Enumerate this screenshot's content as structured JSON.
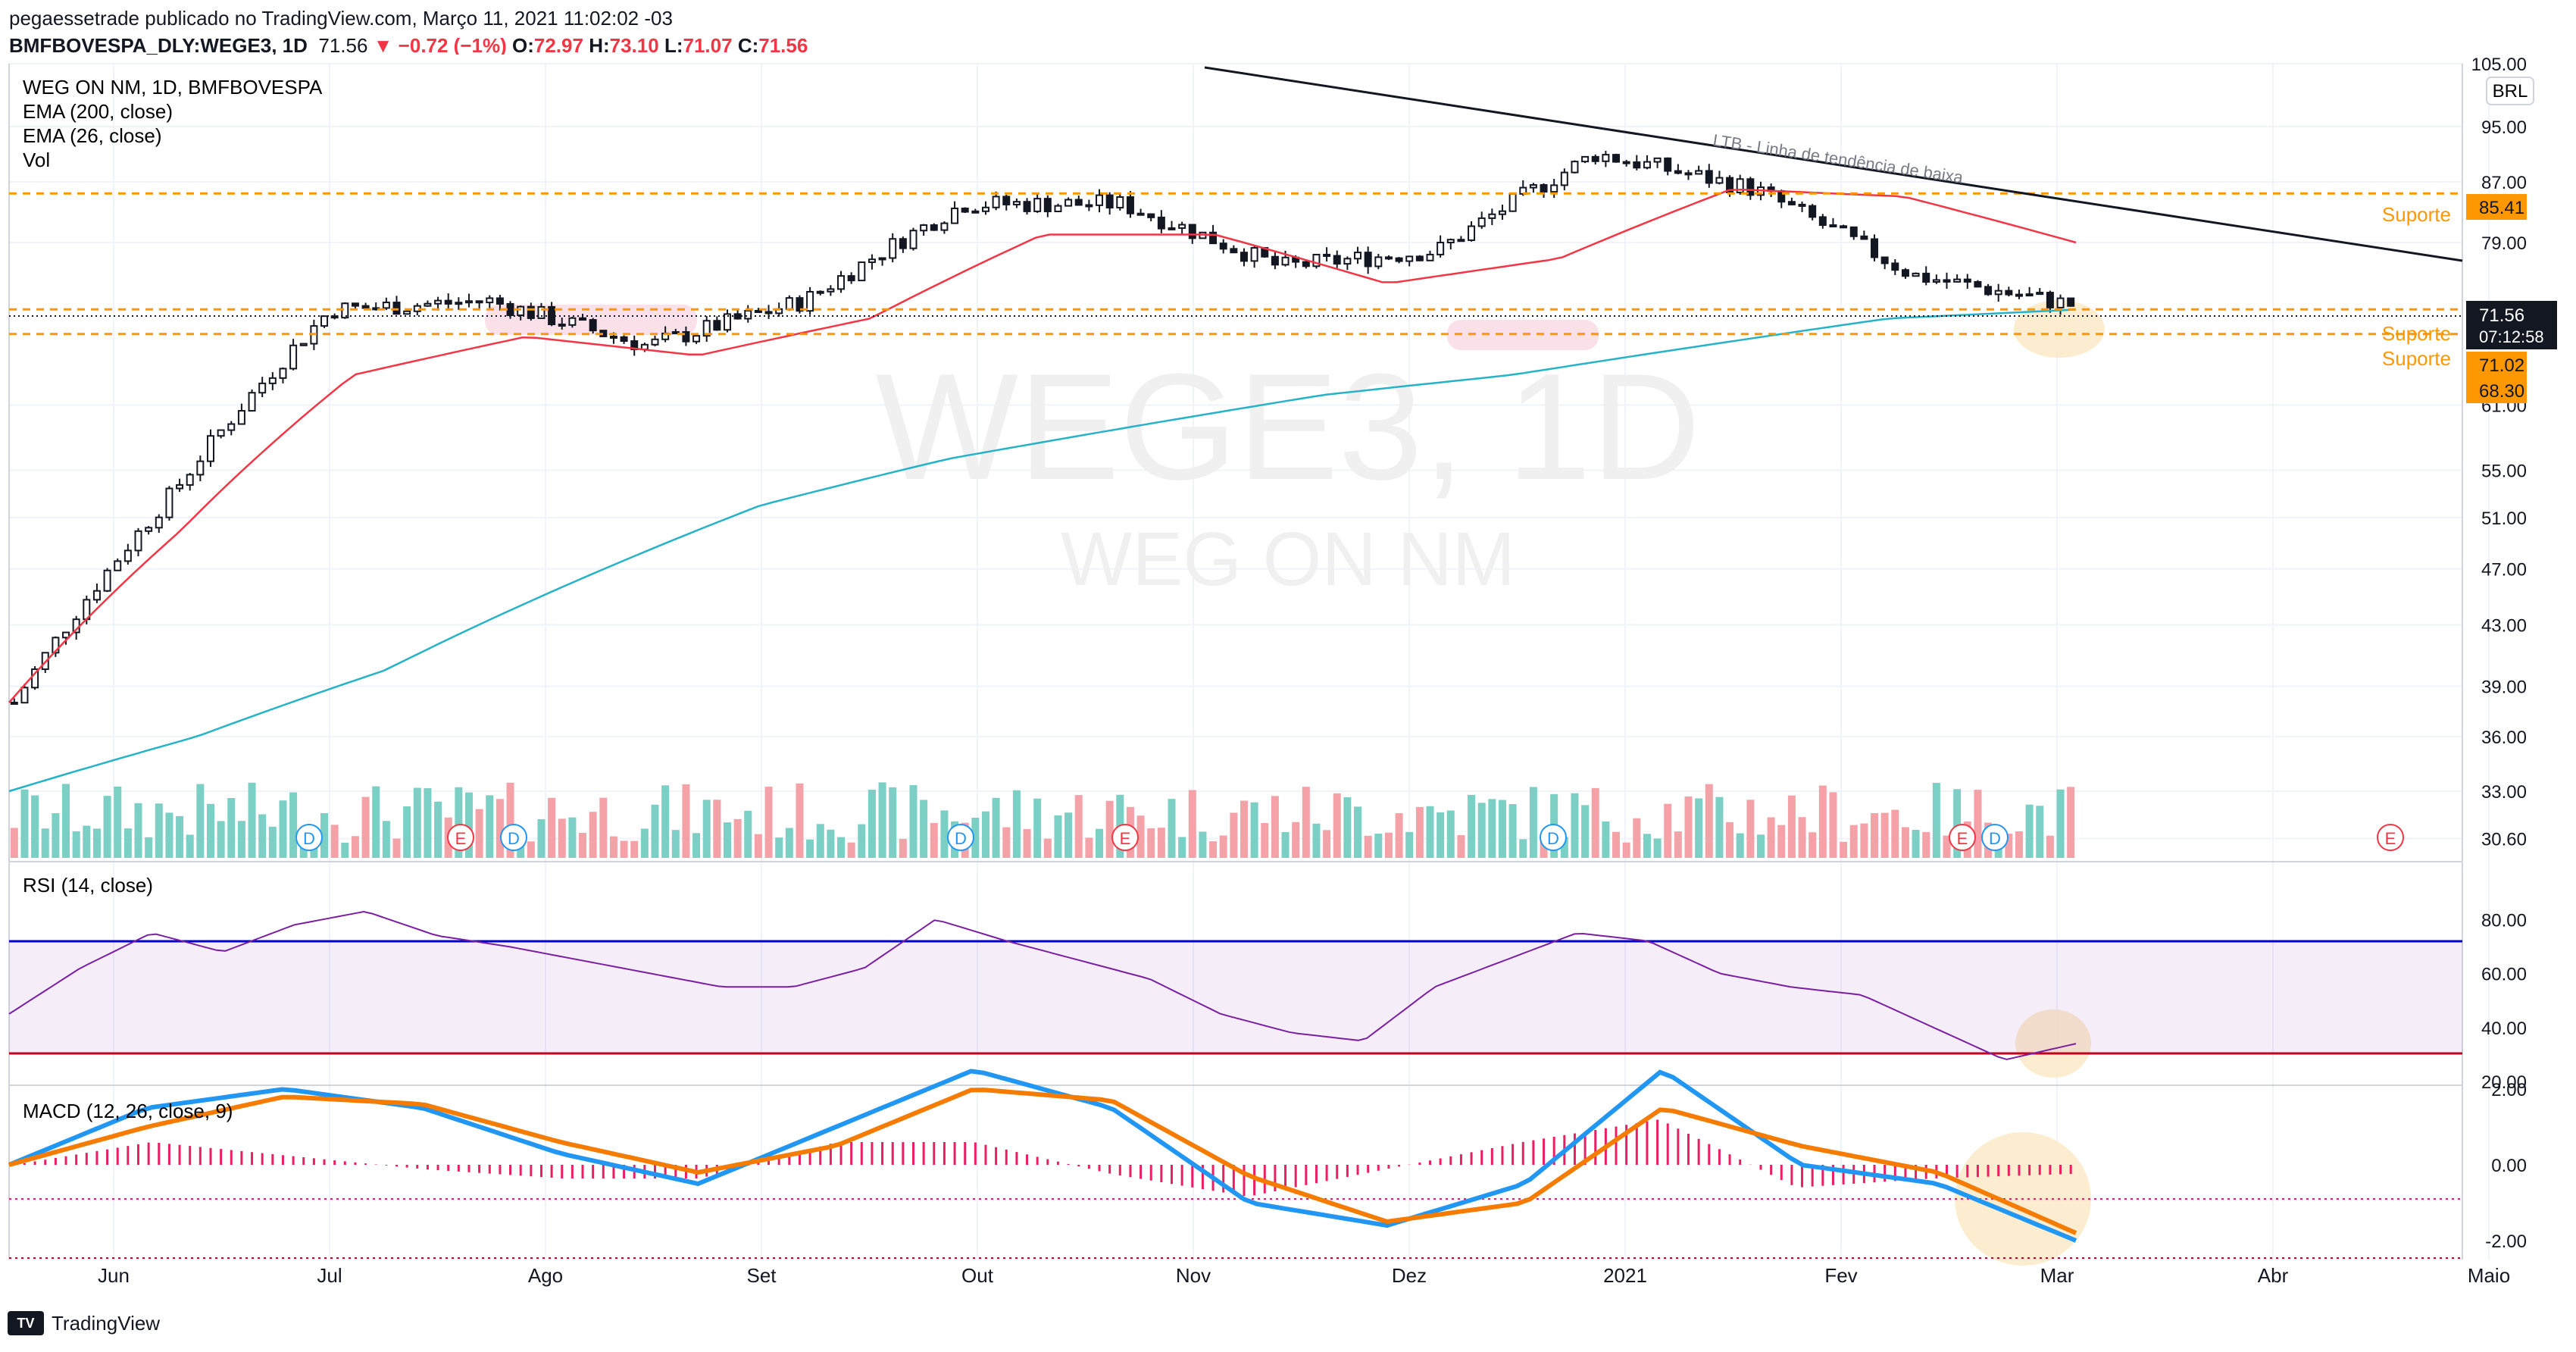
{
  "header": {
    "line1": "pegaessetrade publicado no TradingView.com, Março 11, 2021 11:02:02 -03",
    "symbol": "BMFBOVESPA_DLY:WEGE3, 1D",
    "last": "71.56",
    "change": "−0.72 (−1%)",
    "o_label": "O:",
    "o_value": "72.97",
    "h_label": "H:",
    "h_value": "73.10",
    "l_label": "L:",
    "l_value": "71.07",
    "c_label": "C:",
    "c_value": "71.56"
  },
  "legend": {
    "title": "WEG ON NM, 1D, BMFBOVESPA",
    "ema200": "EMA (200, close)",
    "ema26": "EMA (26, close)",
    "vol": "Vol",
    "rsi": "RSI (14, close)",
    "macd": "MACD (12, 26, close, 9)"
  },
  "watermark": {
    "symbol": "WEGE3, 1D",
    "name": "WEG ON NM"
  },
  "currency": "BRL",
  "price_labels": {
    "last": "71.56",
    "timer": "07:12:58",
    "suporte_label": "Suporte",
    "s1": "85.41",
    "s2": "71.02",
    "s3": "68.30"
  },
  "annotation_ltb": "LTB - Linha de tendência de baixa",
  "event_d": "D",
  "event_e": "E",
  "footer": {
    "brand": "TradingView"
  },
  "colors": {
    "up": "#131722",
    "ema26": "#f23645",
    "ema200": "#26b3c8",
    "vol_up": "#7ccfc4",
    "vol_down": "#f4a2a8",
    "rsi": "#7b1fa2",
    "macd": "#2196f3",
    "signal": "#f57c00",
    "hist": "#e91e63",
    "support": "#ff9800"
  },
  "chart_data": [
    {
      "type": "candlestick",
      "title": "WEG ON NM, 1D, BMFBOVESPA",
      "x_ticks": [
        "Jun",
        "Jul",
        "Ago",
        "Set",
        "Out",
        "Nov",
        "Dez",
        "2021",
        "Fev",
        "Mar",
        "Abr",
        "Maio"
      ],
      "y_ticks": [
        30.6,
        33.0,
        36.0,
        39.0,
        43.0,
        47.0,
        51.0,
        55.0,
        61.0,
        79.0,
        87.0,
        95.0,
        105.0
      ],
      "y_scale": "log",
      "ylim": [
        29.5,
        105
      ],
      "close_approx": [
        {
          "date": "Jun",
          "value": 38
        },
        {
          "date": "Jul",
          "value": 53
        },
        {
          "date": "Jul-end",
          "value": 71
        },
        {
          "date": "Ago",
          "value": 72
        },
        {
          "date": "Set",
          "value": 67
        },
        {
          "date": "Out",
          "value": 72
        },
        {
          "date": "Out-mid",
          "value": 84
        },
        {
          "date": "Nov",
          "value": 84
        },
        {
          "date": "Dez",
          "value": 76
        },
        {
          "date": "2021",
          "value": 78
        },
        {
          "date": "Jan-mid",
          "value": 91
        },
        {
          "date": "Fev",
          "value": 86
        },
        {
          "date": "Mar",
          "value": 75
        },
        {
          "date": "Mar-11",
          "value": 71.56
        }
      ],
      "series": [
        {
          "name": "EMA (26, close)",
          "values": [
            38,
            50,
            64,
            68,
            66,
            70,
            80,
            80,
            74,
            77,
            86,
            85,
            79
          ]
        },
        {
          "name": "EMA (200, close)",
          "values": [
            33,
            36,
            40,
            46,
            52,
            56,
            59,
            62,
            64,
            67,
            70,
            71
          ]
        }
      ],
      "horizontal_lines": [
        85.41,
        71.02,
        68.3
      ],
      "last": 71.56
    },
    {
      "type": "line",
      "title": "RSI (14, close)",
      "y_ticks": [
        20.0,
        40.0,
        60.0,
        80.0
      ],
      "ylim": [
        20,
        100
      ],
      "bands": [
        70,
        30
      ],
      "values": [
        45,
        62,
        75,
        68,
        78,
        83,
        74,
        70,
        65,
        60,
        55,
        55,
        62,
        80,
        72,
        65,
        58,
        45,
        38,
        35,
        55,
        65,
        75,
        72,
        60,
        55,
        52,
        40,
        28,
        34
      ]
    },
    {
      "type": "line",
      "title": "MACD (12, 26, close, 9)",
      "y_ticks": [
        2.0,
        0.0,
        -2.0
      ],
      "ylim": [
        -2.5,
        2.0
      ],
      "series": [
        {
          "name": "MACD",
          "values": [
            0,
            1.5,
            2.0,
            1.5,
            0.3,
            -0.5,
            1.0,
            2.5,
            1.5,
            -1.0,
            -1.6,
            -0.5,
            2.5,
            0,
            -0.5,
            -2.0
          ]
        },
        {
          "name": "Signal",
          "values": [
            0,
            1.0,
            1.8,
            1.6,
            0.6,
            -0.2,
            0.5,
            2.0,
            1.7,
            -0.3,
            -1.5,
            -1.0,
            1.5,
            0.5,
            -0.2,
            -1.8
          ]
        }
      ]
    }
  ]
}
